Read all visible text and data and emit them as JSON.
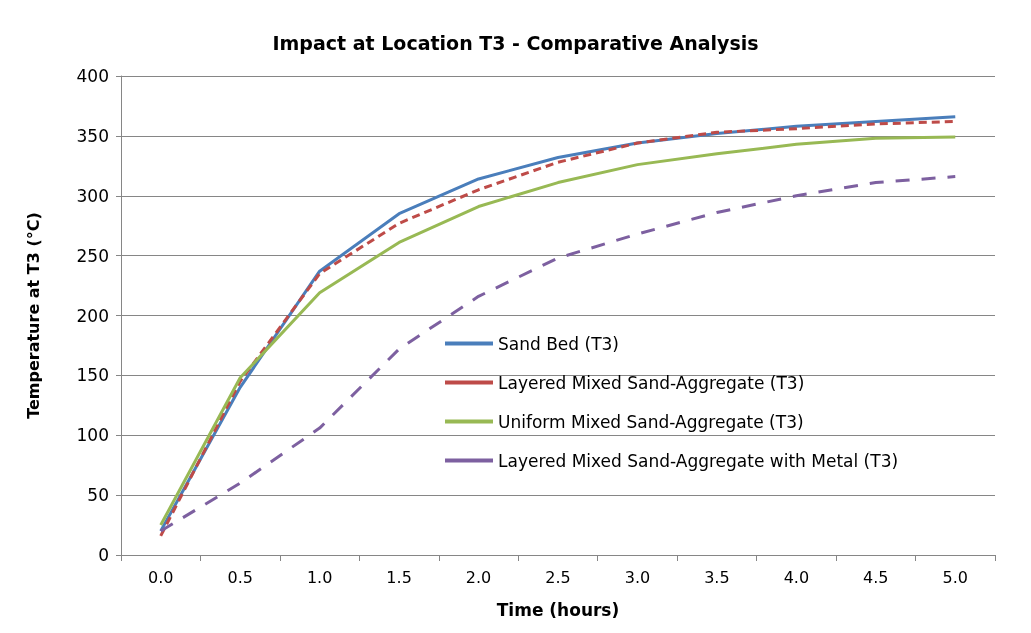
{
  "chart_data": {
    "type": "line",
    "title": "Impact at Location T3 - Comparative Analysis",
    "xlabel": "Time (hours)",
    "ylabel": "Temperature at T3 (°C)",
    "categories": [
      "0.0",
      "0.5",
      "1.0",
      "1.5",
      "2.0",
      "2.5",
      "3.0",
      "3.5",
      "4.0",
      "4.5",
      "5.0"
    ],
    "series": [
      {
        "name": "Sand Bed (T3)",
        "color": "#4a7ebb",
        "line_style": "solid",
        "values": [
          20,
          140,
          237,
          285,
          314,
          332,
          344,
          352,
          358,
          362,
          366
        ]
      },
      {
        "name": "Layered Mixed Sand-Aggregate (T3)",
        "color": "#be4b48",
        "line_style": "dashed",
        "values": [
          16,
          145,
          235,
          277,
          305,
          328,
          344,
          353,
          356,
          360,
          362
        ]
      },
      {
        "name": "Uniform Mixed Sand-Aggregate (T3)",
        "color": "#98b954",
        "line_style": "solid",
        "values": [
          25,
          148,
          219,
          261,
          291,
          311,
          326,
          335,
          343,
          348,
          349
        ]
      },
      {
        "name": "Layered Mixed Sand-Aggregate with Metal (T3)",
        "color": "#7d60a0",
        "line_style": "dashed",
        "values": [
          20,
          60,
          106,
          172,
          216,
          248,
          268,
          286,
          300,
          311,
          316
        ]
      }
    ],
    "ylim": [
      0,
      400
    ],
    "yticks": [
      0,
      50,
      100,
      150,
      200,
      250,
      300,
      350,
      400
    ],
    "grid": "y",
    "legend": "right",
    "marker": "none"
  }
}
